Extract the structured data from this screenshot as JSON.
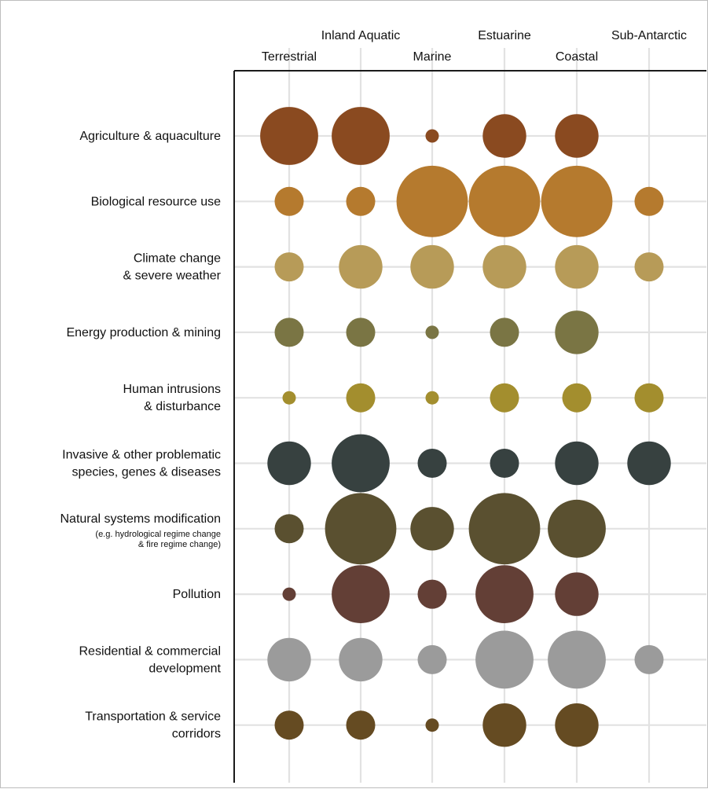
{
  "chart_data": {
    "type": "bubble-matrix",
    "columns": [
      "Terrestrial",
      "Inland Aquatic",
      "Marine",
      "Estuarine",
      "Coastal",
      "Sub-Antarctic"
    ],
    "rows": [
      {
        "label_lines": [
          "Agriculture & aquaculture"
        ],
        "sublabel_lines": [],
        "color": "#8a4a20",
        "values": [
          5.2,
          5.2,
          1.2,
          3.9,
          3.9,
          0
        ]
      },
      {
        "label_lines": [
          "Biological resource use"
        ],
        "sublabel_lines": [],
        "color": "#b57a2e",
        "values": [
          2.6,
          2.6,
          6.4,
          6.4,
          6.4,
          2.6
        ]
      },
      {
        "label_lines": [
          "Climate change",
          "& severe weather"
        ],
        "sublabel_lines": [],
        "color": "#b79b58",
        "values": [
          2.6,
          3.9,
          3.9,
          3.9,
          3.9,
          2.6
        ]
      },
      {
        "label_lines": [
          "Energy production & mining"
        ],
        "sublabel_lines": [],
        "color": "#7a7544",
        "values": [
          2.6,
          2.6,
          1.2,
          2.6,
          3.9,
          0
        ]
      },
      {
        "label_lines": [
          "Human intrusions",
          "& disturbance"
        ],
        "sublabel_lines": [],
        "color": "#a38e2e",
        "values": [
          1.2,
          2.6,
          1.2,
          2.6,
          2.6,
          2.6
        ]
      },
      {
        "label_lines": [
          "Invasive & other problematic",
          "species, genes & diseases"
        ],
        "sublabel_lines": [],
        "color": "#374140",
        "values": [
          3.9,
          5.2,
          2.6,
          2.6,
          3.9,
          3.9
        ]
      },
      {
        "label_lines": [
          "Natural systems modification"
        ],
        "sublabel_lines": [
          "(e.g. hydrological regime change",
          "& fire regime change)"
        ],
        "color": "#5a5030",
        "values": [
          2.6,
          6.4,
          3.9,
          6.4,
          5.2,
          0
        ]
      },
      {
        "label_lines": [
          "Pollution"
        ],
        "sublabel_lines": [],
        "color": "#633f36",
        "values": [
          1.2,
          5.2,
          2.6,
          5.2,
          3.9,
          0
        ]
      },
      {
        "label_lines": [
          "Residential & commercial",
          "development"
        ],
        "sublabel_lines": [],
        "color": "#9b9b9b",
        "values": [
          3.9,
          3.9,
          2.6,
          5.2,
          5.2,
          2.6
        ]
      },
      {
        "label_lines": [
          "Transportation & service",
          "corridors"
        ],
        "sublabel_lines": [],
        "color": "#654b22",
        "values": [
          2.6,
          2.6,
          1.2,
          3.9,
          3.9,
          0
        ]
      }
    ],
    "grid": true
  }
}
